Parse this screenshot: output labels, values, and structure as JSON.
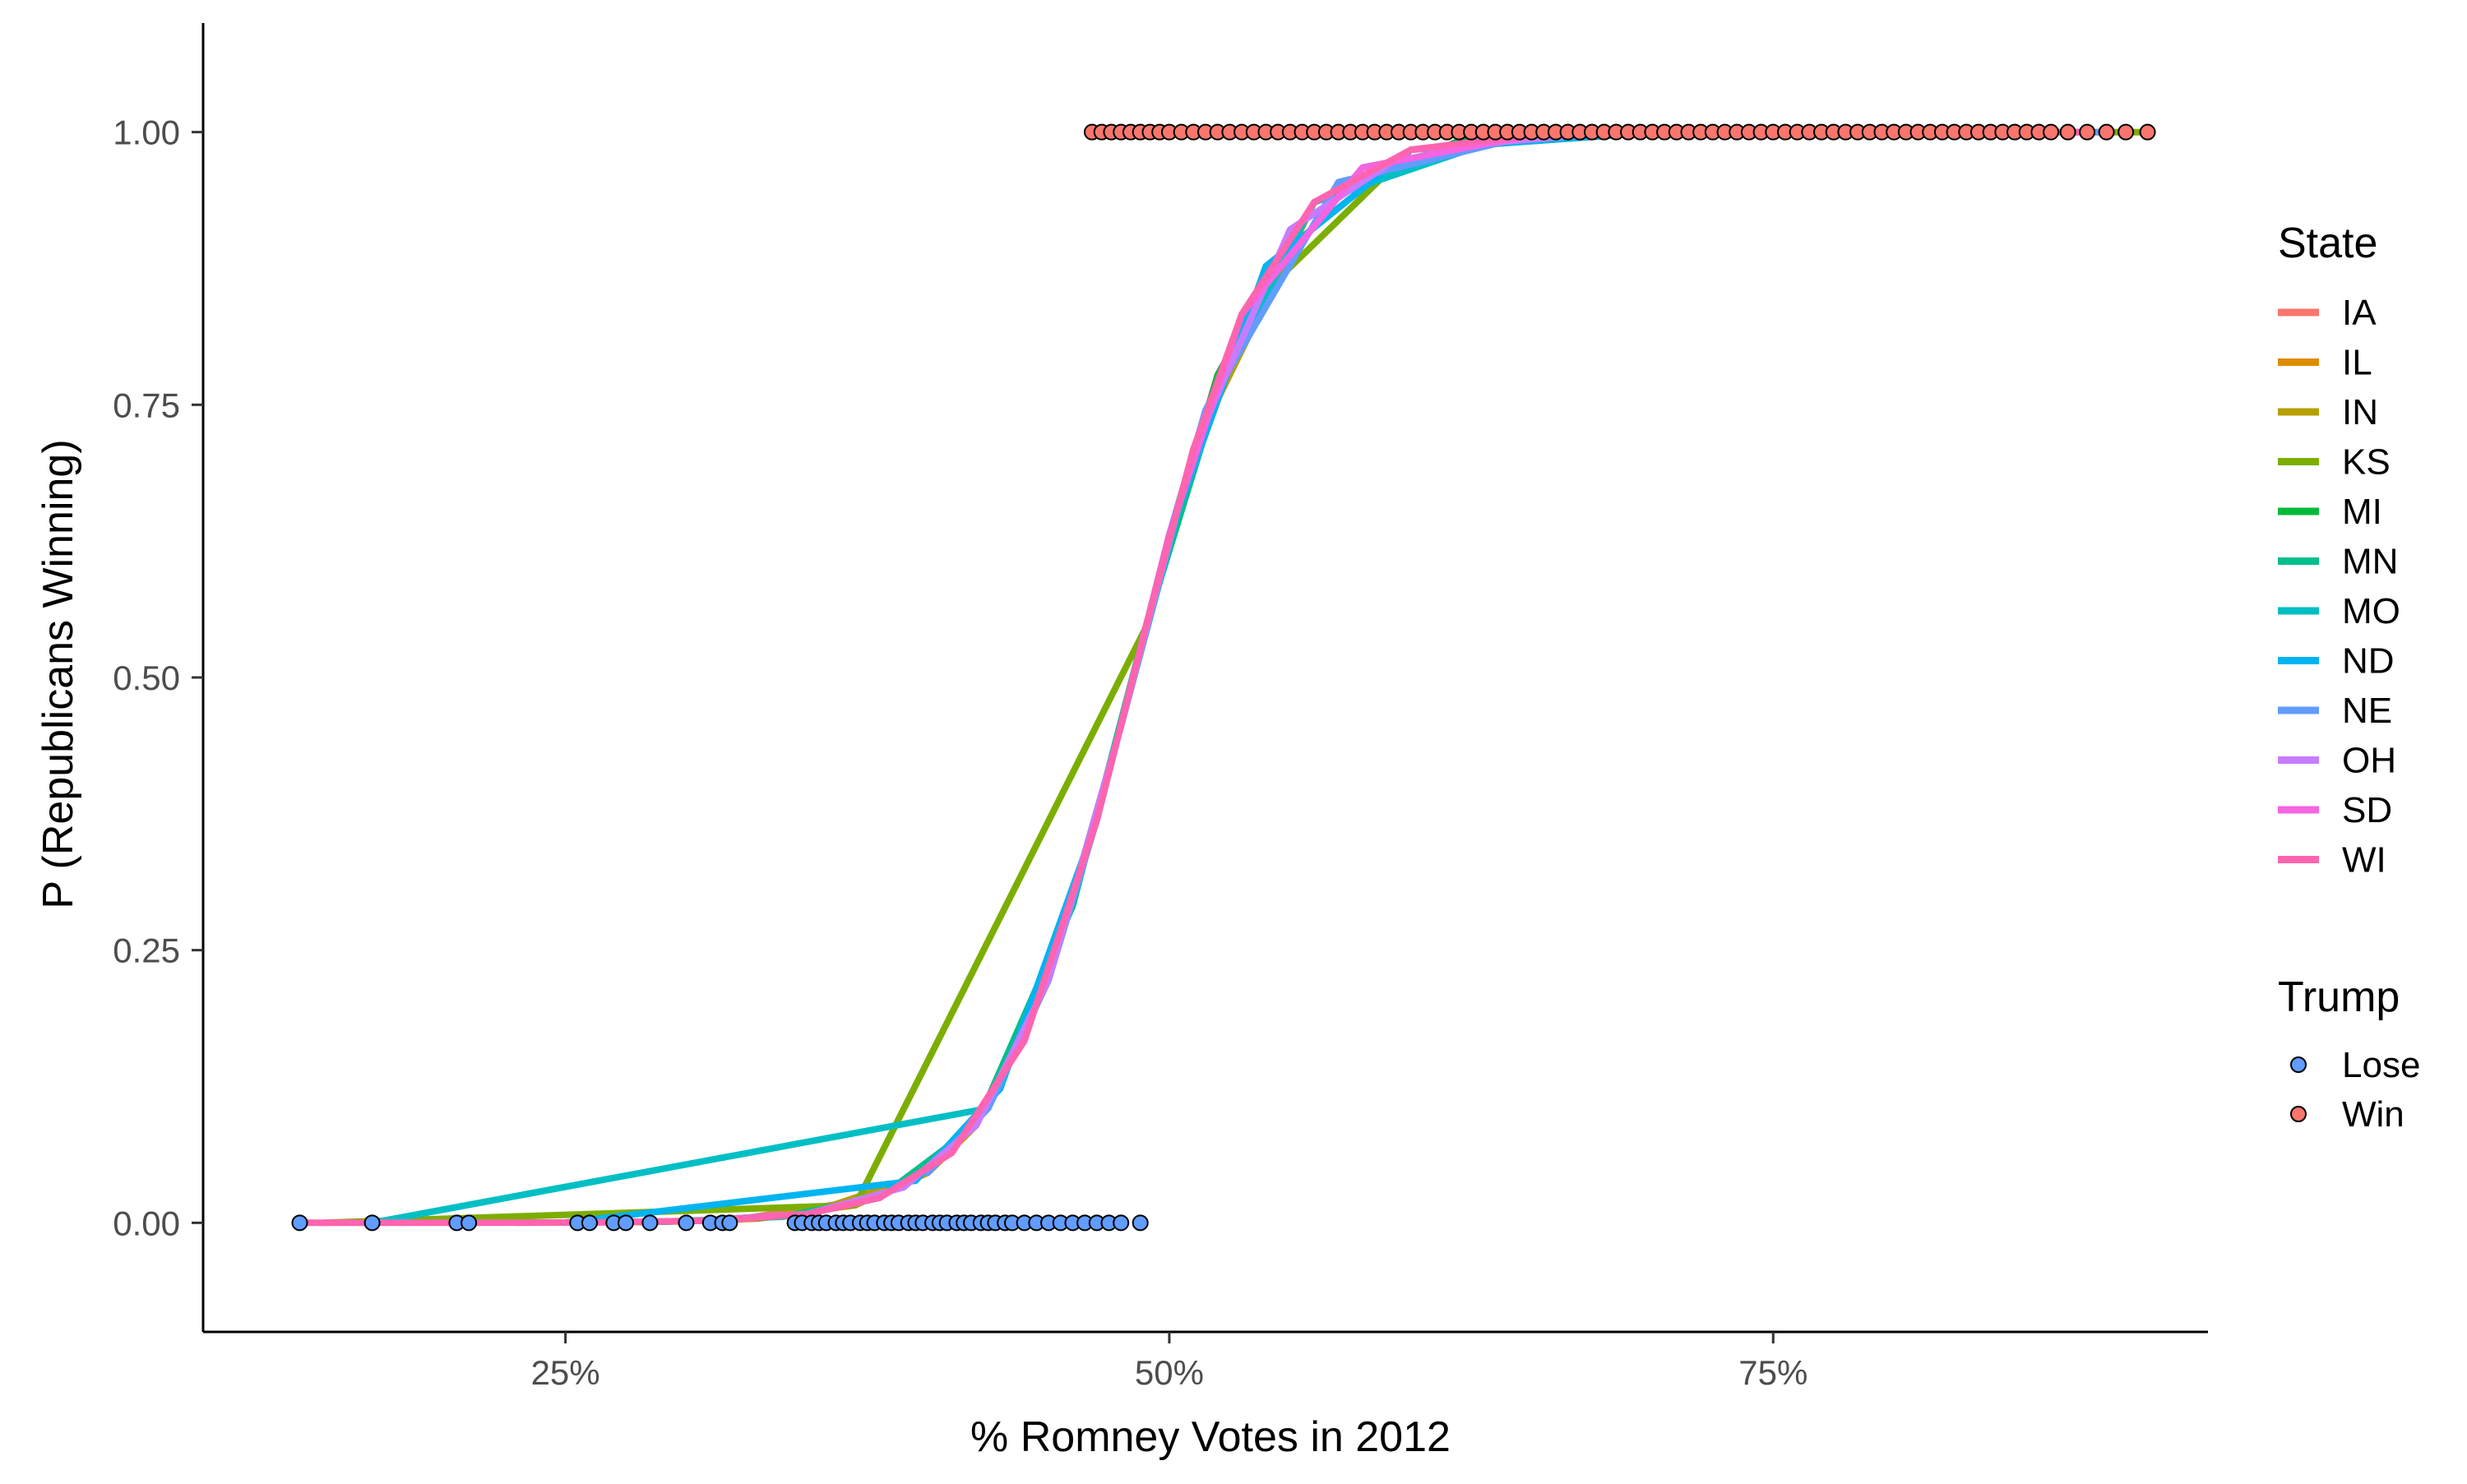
{
  "chart_data": {
    "type": "scatter",
    "title": "",
    "xlabel": "% Romney Votes in 2012",
    "ylabel": "P (Republicans Winning)",
    "xlim": [
      0.1,
      0.93
    ],
    "ylim": [
      -0.1,
      1.1
    ],
    "grid": false,
    "x_ticks": [
      0.25,
      0.5,
      0.75
    ],
    "x_tick_labels": [
      "25%",
      "50%",
      "75%"
    ],
    "y_ticks": [
      0.0,
      0.25,
      0.5,
      0.75,
      1.0
    ],
    "y_tick_labels": [
      "0.00",
      "0.25",
      "0.50",
      "0.75",
      "1.00"
    ],
    "logistic_model": {
      "midpoint": 0.485,
      "scale": 0.028
    },
    "legend_state": {
      "title": "State",
      "placement": "right",
      "entries": [
        {
          "label": "IA",
          "color": "#F8766D"
        },
        {
          "label": "IL",
          "color": "#DE8C00"
        },
        {
          "label": "IN",
          "color": "#B79F00"
        },
        {
          "label": "KS",
          "color": "#7CAE00"
        },
        {
          "label": "MI",
          "color": "#00BA38"
        },
        {
          "label": "MN",
          "color": "#00C08B"
        },
        {
          "label": "MO",
          "color": "#00BFC4"
        },
        {
          "label": "ND",
          "color": "#00B4F0"
        },
        {
          "label": "NE",
          "color": "#619CFF"
        },
        {
          "label": "OH",
          "color": "#C77CFF"
        },
        {
          "label": "SD",
          "color": "#F564E3"
        },
        {
          "label": "WI",
          "color": "#FF64B0"
        }
      ]
    },
    "legend_trump": {
      "title": "Trump",
      "placement": "right",
      "entries": [
        {
          "label": "Lose",
          "color": "#619CFF"
        },
        {
          "label": "Win",
          "color": "#F8766D"
        }
      ]
    },
    "series": [
      {
        "name": "IA",
        "x": [
          0.28,
          0.32,
          0.38,
          0.42,
          0.45,
          0.48,
          0.5,
          0.52,
          0.56,
          0.62,
          0.7,
          0.78
        ],
        "sorted_fit": true
      },
      {
        "name": "IL",
        "x": [
          0.23,
          0.26,
          0.3,
          0.33,
          0.37,
          0.4,
          0.42,
          0.45,
          0.48,
          0.5,
          0.54,
          0.6,
          0.7,
          0.76
        ],
        "sorted_fit": true
      },
      {
        "name": "IN",
        "x": [
          0.3,
          0.35,
          0.4,
          0.42,
          0.45,
          0.48,
          0.51,
          0.56,
          0.62,
          0.7,
          0.78
        ],
        "sorted_fit": true
      },
      {
        "name": "KS",
        "x": [
          0.15,
          0.37,
          0.49,
          0.53,
          0.6,
          0.68,
          0.76,
          0.84,
          0.905
        ],
        "sorted_fit": true
      },
      {
        "name": "MI",
        "x": [
          0.3,
          0.35,
          0.38,
          0.42,
          0.46,
          0.49,
          0.52,
          0.56,
          0.62,
          0.7
        ],
        "sorted_fit": true
      },
      {
        "name": "MN",
        "x": [
          0.29,
          0.34,
          0.38,
          0.42,
          0.46,
          0.49,
          0.53,
          0.58,
          0.65,
          0.72
        ],
        "sorted_fit": true
      },
      {
        "name": "MO",
        "x": [
          0.17,
          0.425,
          0.45,
          0.48,
          0.515,
          0.56,
          0.64,
          0.72,
          0.78,
          0.82
        ],
        "sorted_fit": true
      },
      {
        "name": "ND",
        "x": [
          0.25,
          0.395,
          0.43,
          0.47,
          0.5,
          0.54,
          0.6,
          0.7,
          0.8
        ],
        "sorted_fit": true
      },
      {
        "name": "NE",
        "x": [
          0.4,
          0.425,
          0.45,
          0.47,
          0.5,
          0.515,
          0.57,
          0.65,
          0.75,
          0.82,
          0.89
        ],
        "sorted_fit": true
      },
      {
        "name": "OH",
        "x": [
          0.3,
          0.35,
          0.39,
          0.42,
          0.45,
          0.48,
          0.51,
          0.55,
          0.6,
          0.68,
          0.76
        ],
        "sorted_fit": true
      },
      {
        "name": "SD",
        "x": [
          0.35,
          0.38,
          0.41,
          0.44,
          0.47,
          0.5,
          0.53,
          0.58,
          0.65,
          0.75,
          0.85
        ],
        "sorted_fit": true
      },
      {
        "name": "WI",
        "x": [
          0.14,
          0.2,
          0.26,
          0.31,
          0.35,
          0.38,
          0.41,
          0.44,
          0.47,
          0.49,
          0.51,
          0.53,
          0.56,
          0.6,
          0.65,
          0.72,
          0.8,
          0.88
        ],
        "sorted_fit": true
      }
    ],
    "points": {
      "lose_y": 0,
      "win_y": 1,
      "lose_x": [
        0.14,
        0.17,
        0.205,
        0.21,
        0.255,
        0.26,
        0.27,
        0.275,
        0.285,
        0.3,
        0.31,
        0.315,
        0.318,
        0.345,
        0.348,
        0.352,
        0.355,
        0.358,
        0.362,
        0.365,
        0.368,
        0.372,
        0.375,
        0.378,
        0.382,
        0.385,
        0.388,
        0.392,
        0.395,
        0.398,
        0.402,
        0.405,
        0.408,
        0.412,
        0.415,
        0.418,
        0.422,
        0.425,
        0.428,
        0.432,
        0.435,
        0.44,
        0.445,
        0.45,
        0.455,
        0.46,
        0.465,
        0.47,
        0.475,
        0.48,
        0.488
      ],
      "win_x": [
        0.468,
        0.472,
        0.476,
        0.48,
        0.484,
        0.488,
        0.492,
        0.496,
        0.5,
        0.505,
        0.51,
        0.515,
        0.52,
        0.525,
        0.53,
        0.535,
        0.54,
        0.545,
        0.55,
        0.555,
        0.56,
        0.565,
        0.57,
        0.575,
        0.58,
        0.585,
        0.59,
        0.595,
        0.6,
        0.605,
        0.61,
        0.615,
        0.62,
        0.625,
        0.63,
        0.635,
        0.64,
        0.645,
        0.65,
        0.655,
        0.66,
        0.665,
        0.67,
        0.675,
        0.68,
        0.685,
        0.69,
        0.695,
        0.7,
        0.705,
        0.71,
        0.715,
        0.72,
        0.725,
        0.73,
        0.735,
        0.74,
        0.745,
        0.75,
        0.755,
        0.76,
        0.765,
        0.77,
        0.775,
        0.78,
        0.785,
        0.79,
        0.795,
        0.8,
        0.805,
        0.81,
        0.815,
        0.82,
        0.825,
        0.83,
        0.835,
        0.84,
        0.845,
        0.85,
        0.855,
        0.86,
        0.865,
        0.872,
        0.88,
        0.888,
        0.896,
        0.905
      ]
    }
  }
}
